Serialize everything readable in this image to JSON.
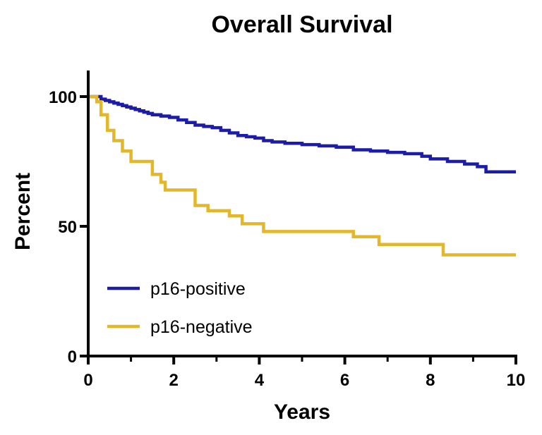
{
  "chart_data": {
    "type": "line",
    "step": true,
    "title": "Overall Survival",
    "xlabel": "Years",
    "ylabel": "Percent",
    "xlim": [
      0,
      10
    ],
    "ylim": [
      0,
      100
    ],
    "x_ticks": [
      0,
      2,
      4,
      6,
      8,
      10
    ],
    "x_minor_ticks": [
      1,
      3,
      5,
      7,
      9
    ],
    "y_ticks": [
      0,
      50,
      100
    ],
    "legend_position": "bottom-left",
    "series": [
      {
        "name": "p16-positive",
        "color": "#1c1ca8",
        "x": [
          0,
          0.3,
          0.4,
          0.5,
          0.6,
          0.7,
          0.8,
          0.9,
          1.0,
          1.1,
          1.2,
          1.3,
          1.4,
          1.5,
          1.7,
          1.9,
          2.1,
          2.3,
          2.5,
          2.7,
          2.9,
          3.1,
          3.3,
          3.5,
          3.7,
          3.9,
          4.1,
          4.3,
          4.6,
          5.0,
          5.4,
          5.8,
          6.2,
          6.6,
          7.0,
          7.4,
          7.8,
          8.0,
          8.4,
          8.8,
          9.1,
          9.3,
          10.0
        ],
        "y": [
          100,
          99,
          98.5,
          98,
          97.5,
          97,
          96.5,
          96,
          95.5,
          95,
          94.5,
          94,
          93.5,
          93,
          92.5,
          92,
          91,
          90,
          89,
          88.5,
          88,
          87,
          86,
          85,
          84.5,
          84,
          83,
          82.5,
          82,
          81.5,
          81,
          80.5,
          79.5,
          79,
          78.5,
          78,
          77,
          76,
          75,
          74,
          73,
          71,
          71
        ]
      },
      {
        "name": "p16-negative",
        "color": "#e3b72a",
        "x": [
          0,
          0.2,
          0.3,
          0.45,
          0.6,
          0.8,
          1.0,
          1.5,
          1.7,
          1.8,
          2.5,
          2.8,
          3.3,
          3.6,
          4.1,
          6.2,
          6.8,
          8.3,
          10.0
        ],
        "y": [
          100,
          98,
          93,
          87,
          83,
          79,
          75,
          70,
          67,
          64,
          58,
          56,
          54,
          51,
          48,
          46,
          43,
          39,
          39
        ]
      }
    ]
  }
}
